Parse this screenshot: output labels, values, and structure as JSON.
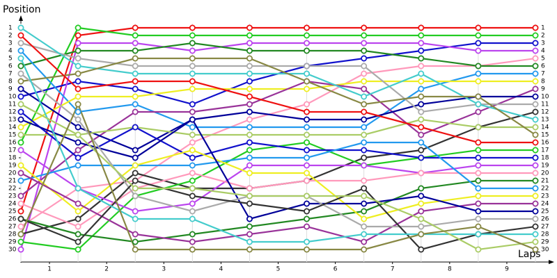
{
  "chart_data": {
    "type": "bump",
    "y_label": "Position",
    "x_label": "Laps",
    "x": [
      0.5,
      1.5,
      2.5,
      3.5,
      4.5,
      5.5,
      6.5,
      7.5,
      8.5,
      9.5
    ],
    "xlim": [
      0.5,
      9.5
    ],
    "xticks": [
      1,
      2,
      3,
      4,
      5,
      6,
      7,
      8,
      9
    ],
    "ylim": [
      1,
      30
    ],
    "y_inverted": true,
    "yticks": [
      1,
      2,
      3,
      4,
      5,
      6,
      7,
      8,
      9,
      10,
      11,
      12,
      13,
      14,
      15,
      16,
      17,
      18,
      19,
      20,
      21,
      22,
      23,
      24,
      25,
      26,
      27,
      28,
      29,
      30
    ],
    "grid": true,
    "series": [
      {
        "color": "#ee1111",
        "values": [
          25,
          2,
          1,
          1,
          1,
          1,
          1,
          1,
          1,
          1
        ]
      },
      {
        "color": "#22cc22",
        "values": [
          16,
          1,
          2,
          2,
          2,
          2,
          2,
          2,
          2,
          2
        ]
      },
      {
        "color": "#1111cc",
        "values": [
          10,
          8,
          9,
          11,
          8,
          6,
          5,
          4,
          3,
          3
        ]
      },
      {
        "color": "#bb44ee",
        "values": [
          30,
          3,
          3,
          4,
          3,
          3,
          3,
          3,
          4,
          4
        ]
      },
      {
        "color": "#ff99bb",
        "values": [
          27,
          22,
          21,
          16,
          13,
          11,
          7,
          6,
          6,
          5
        ]
      },
      {
        "color": "#228822",
        "values": [
          6,
          4,
          4,
          3,
          4,
          4,
          4,
          5,
          6,
          6
        ]
      },
      {
        "color": "#2299ee",
        "values": [
          4,
          12,
          11,
          14,
          14,
          14,
          14,
          9,
          7,
          7
        ]
      },
      {
        "color": "#eeee22",
        "values": [
          14,
          10,
          10,
          9,
          9,
          9,
          8,
          8,
          8,
          8
        ]
      },
      {
        "color": "#993399",
        "values": [
          23,
          17,
          12,
          12,
          11,
          8,
          9,
          15,
          12,
          9
        ]
      },
      {
        "color": "#000099",
        "values": [
          9,
          14,
          17,
          13,
          12,
          13,
          13,
          11,
          10,
          10
        ]
      },
      {
        "color": "#aaaaaa",
        "values": [
          3,
          5,
          6,
          6,
          6,
          6,
          6,
          12,
          11,
          11
        ]
      },
      {
        "color": "#333333",
        "values": [
          28,
          26,
          20,
          22,
          22,
          21,
          18,
          17,
          14,
          12
        ]
      },
      {
        "color": "#44cccc",
        "values": [
          1,
          6,
          7,
          7,
          7,
          7,
          10,
          7,
          11,
          13
        ]
      },
      {
        "color": "#aacc66",
        "values": [
          15,
          15,
          14,
          15,
          15,
          15,
          15,
          13,
          14,
          14
        ]
      },
      {
        "color": "#888844",
        "values": [
          8,
          7,
          5,
          5,
          5,
          8,
          11,
          10,
          10,
          15
        ]
      },
      {
        "color": "#ee1111",
        "values": [
          2,
          9,
          8,
          8,
          10,
          12,
          12,
          14,
          16,
          16
        ]
      },
      {
        "color": "#22cc22",
        "values": [
          29,
          30,
          23,
          21,
          17,
          16,
          19,
          18,
          17,
          17
        ]
      },
      {
        "color": "#1111cc",
        "values": [
          12,
          18,
          14,
          18,
          16,
          17,
          17,
          18,
          18,
          18
        ]
      },
      {
        "color": "#bb44ee",
        "values": [
          17,
          22,
          25,
          24,
          19,
          19,
          19,
          20,
          19,
          19
        ]
      },
      {
        "color": "#ff99bb",
        "values": [
          24,
          27,
          22,
          20,
          22,
          21,
          21,
          20,
          20,
          20
        ]
      },
      {
        "color": "#228822",
        "values": [
          26,
          28,
          29,
          28,
          27,
          26,
          25,
          22,
          21,
          21
        ]
      },
      {
        "color": "#2299ee",
        "values": [
          21,
          19,
          19,
          19,
          18,
          18,
          16,
          16,
          22,
          22
        ]
      },
      {
        "color": "#eeee22",
        "values": [
          19,
          25,
          19,
          17,
          20,
          20,
          26,
          24,
          23,
          23
        ]
      },
      {
        "color": "#993399",
        "values": [
          20,
          24,
          28,
          29,
          28,
          27,
          29,
          25,
          24,
          24
        ]
      },
      {
        "color": "#000099",
        "values": [
          13,
          16,
          18,
          13,
          26,
          24,
          24,
          23,
          25,
          25
        ]
      },
      {
        "color": "#aaaaaa",
        "values": [
          7,
          13,
          23,
          25,
          23,
          23,
          27,
          27,
          26,
          26
        ]
      },
      {
        "color": "#333333",
        "values": [
          26,
          29,
          21,
          23,
          24,
          25,
          22,
          30,
          28,
          27
        ]
      },
      {
        "color": "#44cccc",
        "values": [
          5,
          22,
          26,
          26,
          29,
          29,
          28,
          28,
          28,
          28
        ]
      },
      {
        "color": "#aacc66",
        "values": [
          11,
          15,
          22,
          22,
          23,
          23,
          23,
          26,
          30,
          29
        ]
      },
      {
        "color": "#888844",
        "values": [
          28,
          11,
          30,
          30,
          30,
          30,
          30,
          28,
          27,
          30
        ]
      }
    ]
  }
}
